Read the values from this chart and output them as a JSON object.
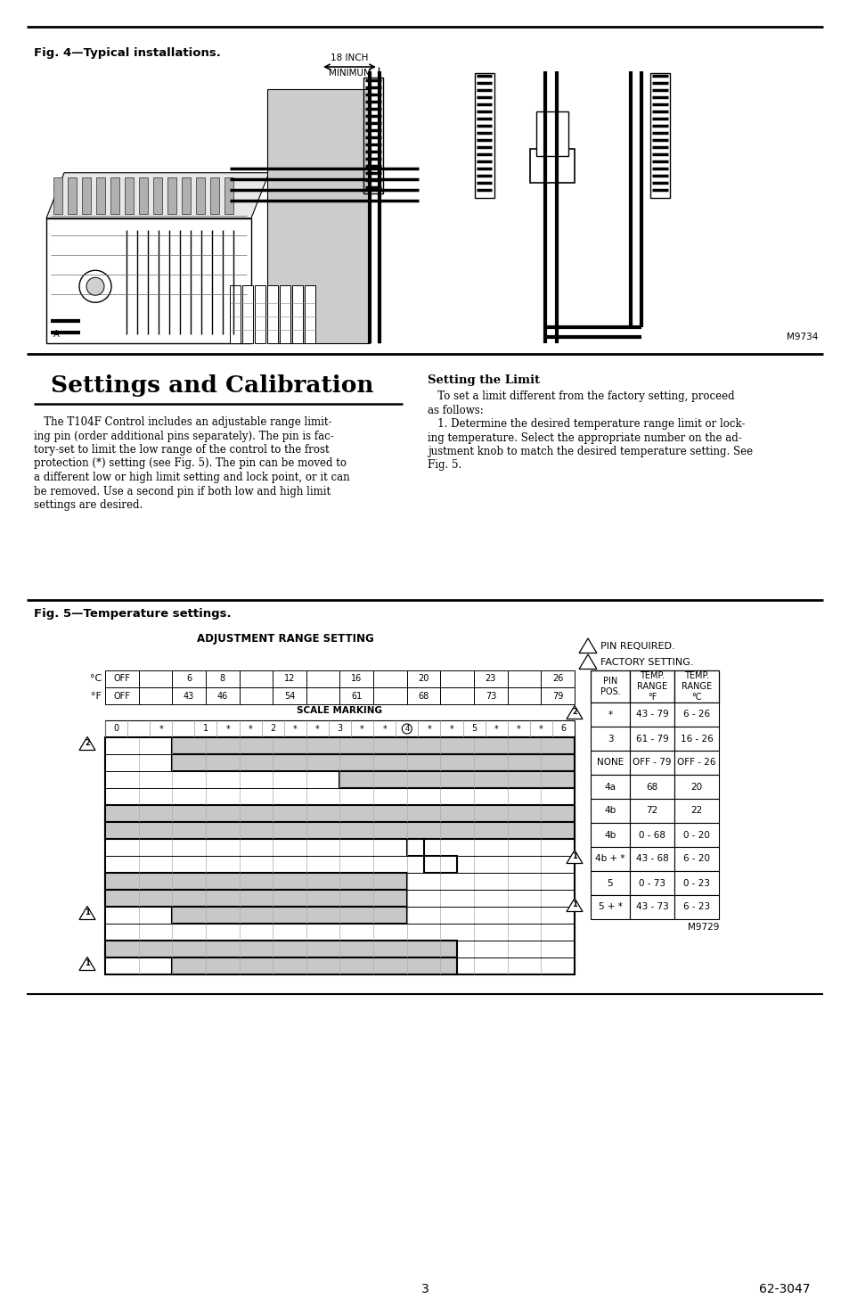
{
  "page_title": "Settings and Calibration",
  "fig4_label": "Fig. 4—Typical installations.",
  "fig5_label": "Fig. 5—Temperature settings.",
  "section_title_right": "Setting the Limit",
  "adj_range_title": "ADJUSTMENT RANGE SETTING",
  "scale_marking_label": "SCALE MARKING",
  "celsius_labels": [
    "OFF",
    "",
    "6",
    "8",
    "",
    "12",
    "",
    "16",
    "",
    "20",
    "",
    "23",
    "",
    "26"
  ],
  "fahrenheit_labels": [
    "OFF",
    "",
    "43",
    "46",
    "",
    "54",
    "",
    "61",
    "",
    "68",
    "",
    "73",
    "",
    "79"
  ],
  "scale_marks": [
    "0",
    "",
    "*",
    "",
    "1",
    "*",
    "*",
    "2",
    "*",
    "*",
    "3",
    "*",
    "*",
    "4",
    "*",
    "*",
    "5",
    "*",
    "*",
    "*",
    "6"
  ],
  "pin_required_text": "PIN REQUIRED.",
  "factory_setting_text": "FACTORY SETTING.",
  "table_rows": [
    [
      "*",
      "43 - 79",
      "6 - 26"
    ],
    [
      "3",
      "61 - 79",
      "16 - 26"
    ],
    [
      "NONE",
      "OFF - 79",
      "OFF - 26"
    ],
    [
      "4a",
      "68",
      "20"
    ],
    [
      "4b",
      "72",
      "22"
    ],
    [
      "4b",
      "0 - 68",
      "0 - 20"
    ],
    [
      "4b + *",
      "43 - 68",
      "6 - 20"
    ],
    [
      "5",
      "0 - 73",
      "0 - 23"
    ],
    [
      "5 + *",
      "43 - 73",
      "6 - 23"
    ]
  ],
  "m9734": "M9734",
  "m9729": "M9729",
  "page_num": "3",
  "doc_num": "62-3047",
  "bg_color": "#ffffff",
  "left_col_lines": [
    "   The T104F Control includes an adjustable range limit-",
    "ing pin (order additional pins separately). The pin is fac-",
    "tory-set to limit the low range of the control to the frost",
    "protection (*) setting (see Fig. 5). The pin can be moved to",
    "a different low or high limit setting and lock point, or it can",
    "be removed. Use a second pin if both low and high limit",
    "settings are desired."
  ],
  "right_col_lines": [
    "   To set a limit different from the factory setting, proceed",
    "as follows:",
    "   1. Determine the desired temperature range limit or lock-",
    "ing temperature. Select the appropriate number on the ad-",
    "justment knob to match the desired temperature setting. See",
    "Fig. 5."
  ]
}
